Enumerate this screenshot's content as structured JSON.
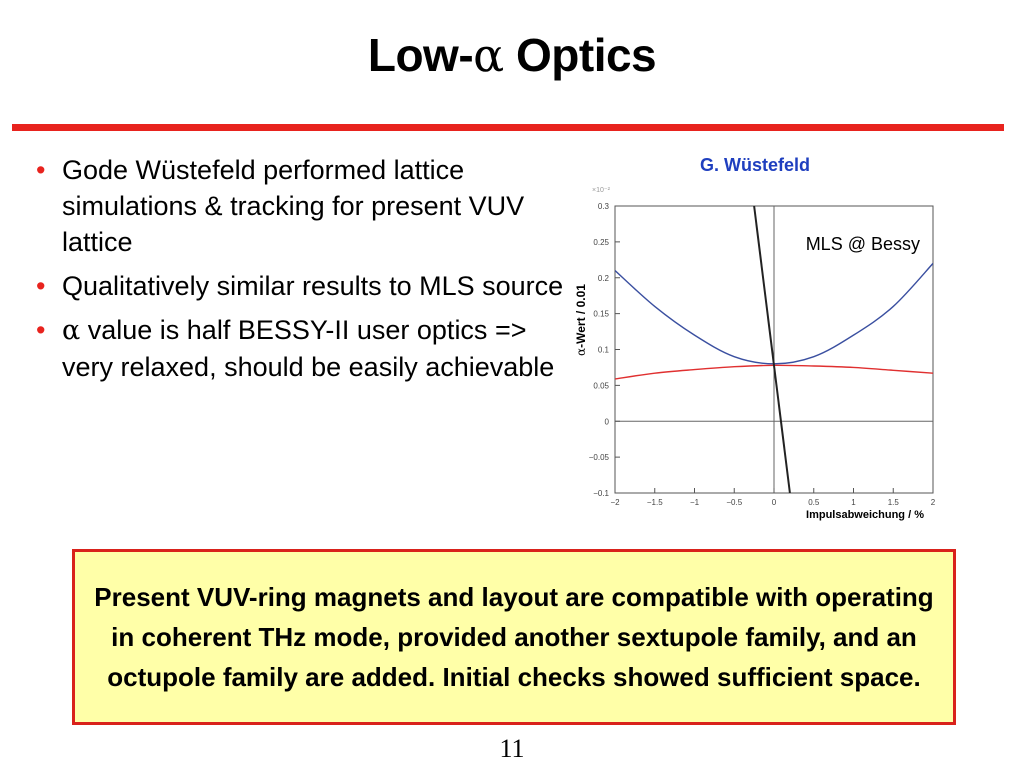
{
  "slide": {
    "title_prefix": "Low-",
    "title_greek": "α",
    "title_suffix": " Optics",
    "credit": "G. Wüstefeld",
    "bullets": [
      {
        "greek": "",
        "text": "Gode Wüstefeld performed lattice simulations & tracking for present VUV lattice"
      },
      {
        "greek": "",
        "text": "Qualitatively similar results to MLS source"
      },
      {
        "greek": "α",
        "text": " value is half BESSY-II user optics => very relaxed, should be easily achievable"
      }
    ],
    "summary": "Present VUV-ring magnets and layout are compatible with operating in coherent THz mode, provided another sextupole family, and an octupole family are added. Initial checks showed sufficient space.",
    "page_number": "11",
    "colors": {
      "accent_red": "#e8231e",
      "credit_blue": "#1f3fbf",
      "summary_bg": "#ffffa8"
    }
  },
  "chart_data": {
    "type": "line",
    "ylabel_greek": "α",
    "ylabel": "-Wert / 0.01",
    "xlabel": "Impulsabweichung  / %",
    "annotation": "MLS @ Bessy",
    "scale_note": "×10⁻²",
    "xlim": [
      -2,
      2
    ],
    "ylim": [
      -0.1,
      0.3
    ],
    "x_ticks": [
      "−2",
      "−1.5",
      "−1",
      "−0.5",
      "0",
      "0.5",
      "1",
      "1.5",
      "2"
    ],
    "y_ticks": [
      "0.3",
      "0.25",
      "0.2",
      "0.15",
      "0.1",
      "0.05",
      "0",
      "−0.05",
      "−0.1"
    ],
    "series": [
      {
        "color": "#3a4fa0",
        "x": [
          -2,
          -1.5,
          -1,
          -0.5,
          0,
          0.5,
          1,
          1.5,
          2
        ],
        "y": [
          0.21,
          0.16,
          0.12,
          0.09,
          0.08,
          0.09,
          0.12,
          0.16,
          0.22
        ]
      },
      {
        "color": "#e03030",
        "x": [
          -2,
          -1.5,
          -1,
          -0.5,
          0,
          0.5,
          1,
          1.5,
          2
        ],
        "y": [
          0.059,
          0.067,
          0.072,
          0.076,
          0.078,
          0.077,
          0.075,
          0.071,
          0.067
        ]
      },
      {
        "color": "#222222",
        "x": [
          -0.25,
          0.2
        ],
        "y": [
          0.3,
          -0.1
        ]
      }
    ],
    "grid": false
  }
}
